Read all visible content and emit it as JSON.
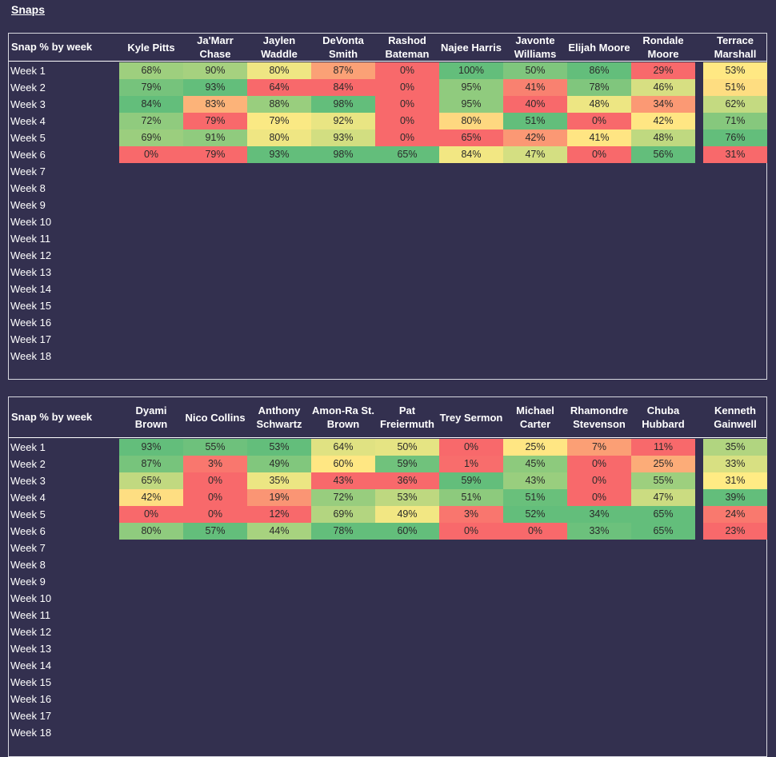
{
  "sheet_title": "Snaps",
  "weeks": [
    "Week 1",
    "Week 2",
    "Week 3",
    "Week 4",
    "Week 5",
    "Week 6",
    "Week 7",
    "Week 8",
    "Week 9",
    "Week 10",
    "Week 11",
    "Week 12",
    "Week 13",
    "Week 14",
    "Week 15",
    "Week 16",
    "Week 17",
    "Week 18"
  ],
  "tables": [
    {
      "header_label": "Snap % by week",
      "players": [
        {
          "name": "Kyle Pitts",
          "snaps": [
            68,
            79,
            84,
            72,
            69,
            0
          ]
        },
        {
          "name": "Ja'Marr Chase",
          "snaps": [
            90,
            93,
            83,
            79,
            91,
            79
          ]
        },
        {
          "name": "Jaylen Waddle",
          "snaps": [
            80,
            64,
            88,
            79,
            80,
            93
          ]
        },
        {
          "name": "DeVonta Smith",
          "snaps": [
            87,
            84,
            98,
            92,
            93,
            98
          ]
        },
        {
          "name": "Rashod Bateman",
          "snaps": [
            0,
            0,
            0,
            0,
            0,
            65
          ]
        },
        {
          "name": "Najee Harris",
          "snaps": [
            100,
            95,
            95,
            80,
            65,
            84
          ]
        },
        {
          "name": "Javonte Williams",
          "snaps": [
            50,
            41,
            40,
            51,
            42,
            47
          ]
        },
        {
          "name": "Elijah Moore",
          "snaps": [
            86,
            78,
            48,
            0,
            41,
            0
          ]
        },
        {
          "name": "Rondale Moore",
          "snaps": [
            29,
            46,
            34,
            42,
            48,
            56
          ]
        },
        {
          "name": "Terrace Marshall",
          "snaps": [
            53,
            51,
            62,
            71,
            76,
            31
          ]
        }
      ]
    },
    {
      "header_label": "Snap % by week",
      "players": [
        {
          "name": "Dyami Brown",
          "snaps": [
            93,
            87,
            65,
            42,
            0,
            80
          ]
        },
        {
          "name": "Nico Collins",
          "snaps": [
            55,
            3,
            0,
            0,
            0,
            57
          ]
        },
        {
          "name": "Anthony Schwartz",
          "snaps": [
            53,
            49,
            35,
            19,
            12,
            44
          ]
        },
        {
          "name": "Amon-Ra St. Brown",
          "snaps": [
            64,
            60,
            43,
            72,
            69,
            78
          ]
        },
        {
          "name": "Pat Freiermuth",
          "snaps": [
            50,
            59,
            36,
            53,
            49,
            60
          ]
        },
        {
          "name": "Trey Sermon",
          "snaps": [
            0,
            1,
            59,
            51,
            3,
            0
          ]
        },
        {
          "name": "Michael Carter",
          "snaps": [
            25,
            45,
            43,
            51,
            52,
            0
          ]
        },
        {
          "name": "Rhamondre Stevenson",
          "snaps": [
            7,
            0,
            0,
            0,
            34,
            33
          ]
        },
        {
          "name": "Chuba Hubbard",
          "snaps": [
            11,
            25,
            55,
            47,
            65,
            65
          ]
        },
        {
          "name": "Kenneth Gainwell",
          "snaps": [
            35,
            33,
            31,
            39,
            24,
            23
          ]
        }
      ]
    }
  ],
  "colors": {
    "background": "#33304f",
    "scale_low": "#f8696b",
    "scale_mid": "#ffeb84",
    "scale_high": "#63be7b"
  }
}
